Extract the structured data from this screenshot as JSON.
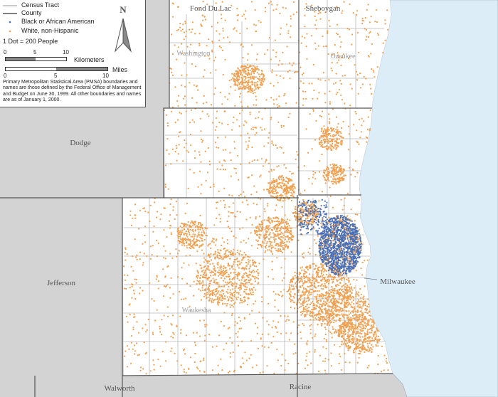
{
  "legend": {
    "items": [
      {
        "label": "Census Tract",
        "symbol": "tract-line"
      },
      {
        "label": "County",
        "symbol": "county-line"
      },
      {
        "label": "Black or African American",
        "symbol": "dot",
        "color": "#4a6fb5"
      },
      {
        "label": "White, non-Hispanic",
        "symbol": "dot",
        "color": "#f0a050"
      }
    ],
    "dot_value": "1 Dot = 200 People",
    "north": "N",
    "scale_km": {
      "ticks": [
        "0",
        "5",
        "10"
      ],
      "unit": "Kilometers"
    },
    "scale_mi": {
      "ticks": [
        "0",
        "5",
        "10"
      ],
      "unit": "Miles"
    },
    "note": "Primary Metropolitan Statistical Area (PMSA) boundaries and names are those defined by the Federal Office of Management and Budget on June 30, 1999. All other boundaries and names are as of January 1, 2000."
  },
  "counties": {
    "outer": [
      "Fond Du Lac",
      "Sheboygan",
      "Dodge",
      "Jefferson",
      "Walworth",
      "Racine"
    ],
    "in_pmsa": [
      "Washington",
      "Ozaukee",
      "Waukesha",
      "Milwaukee"
    ]
  },
  "colors": {
    "lake": "#dcedf8",
    "outside_land": "#d3d3d3",
    "pmsa_land": "#ffffff",
    "tract_line": "#b8b8b8",
    "county_line": "#555555",
    "black_dot": "#4a6fb5",
    "white_dot": "#f0a050"
  }
}
